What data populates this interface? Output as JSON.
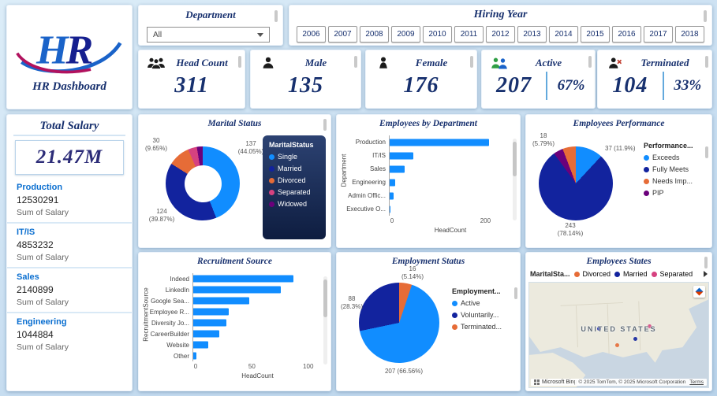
{
  "logo": {
    "text_h": "H",
    "text_r": "R",
    "title": "HR Dashboard"
  },
  "slicers": {
    "department": {
      "title": "Department",
      "value": "All"
    },
    "hiring_year": {
      "title": "Hiring Year",
      "years": [
        "2006",
        "2007",
        "2008",
        "2009",
        "2010",
        "2011",
        "2012",
        "2013",
        "2014",
        "2015",
        "2016",
        "2017",
        "2018"
      ]
    }
  },
  "kpis": [
    {
      "label": "Head Count",
      "value": "311",
      "icon": "people-group-icon"
    },
    {
      "label": "Male",
      "value": "135",
      "icon": "male-person-icon"
    },
    {
      "label": "Female",
      "value": "176",
      "icon": "female-person-icon"
    },
    {
      "label": "Active",
      "value": "207",
      "pct": "67%",
      "icon": "active-people-icon"
    },
    {
      "label": "Terminated",
      "value": "104",
      "pct": "33%",
      "icon": "terminated-person-icon"
    }
  ],
  "total_salary": {
    "title": "Total Salary",
    "value": "21.47M",
    "rows": [
      {
        "dept": "Production",
        "value": "12530291",
        "caption": "Sum of Salary"
      },
      {
        "dept": "IT/IS",
        "value": "4853232",
        "caption": "Sum of Salary"
      },
      {
        "dept": "Sales",
        "value": "2140899",
        "caption": "Sum of Salary"
      },
      {
        "dept": "Engineering",
        "value": "1044884",
        "caption": "Sum of Salary"
      }
    ]
  },
  "chart_data": [
    {
      "id": "marital-status",
      "type": "donut",
      "title": "Marital Status",
      "legend_title": "MaritalStatus",
      "slices": [
        {
          "label": "Single",
          "value": 137,
          "pct": "44.05%",
          "color": "#118DFF"
        },
        {
          "label": "Married",
          "value": 124,
          "pct": "39.87%",
          "color": "#12239E"
        },
        {
          "label": "Divorced",
          "value": 30,
          "pct": "9.65%",
          "color": "#E66C37"
        },
        {
          "label": "Separated",
          "value": 12,
          "pct": "3.86%",
          "color": "#D64280"
        },
        {
          "label": "Widowed",
          "value": 8,
          "pct": "2.57%",
          "color": "#6B007B"
        }
      ],
      "legend": [
        {
          "label": "Single",
          "color": "#118DFF"
        },
        {
          "label": "Married",
          "color": "#12239E"
        },
        {
          "label": "Divorced",
          "color": "#E66C37"
        },
        {
          "label": "Separated",
          "color": "#D64280"
        },
        {
          "label": "Widowed",
          "color": "#6B007B"
        }
      ],
      "callouts": [
        "30\n(9.65%)",
        "137\n(44.05%)",
        "124\n(39.87%)"
      ]
    },
    {
      "id": "employees-by-department",
      "type": "bar",
      "title": "Employees by Department",
      "categories": [
        "Production",
        "IT/IS",
        "Sales",
        "Engineering",
        "Admin Offic...",
        "Executive O..."
      ],
      "values": [
        209,
        50,
        31,
        11,
        9,
        1
      ],
      "bar_color": "#118DFF",
      "xlabel": "HeadCount",
      "ylabel": "Department",
      "xmax": 250,
      "xticks": [
        0,
        200
      ]
    },
    {
      "id": "employees-performance",
      "type": "pie",
      "title": "Employees Performance",
      "legend_title": "Performance...",
      "slices": [
        {
          "label": "Exceeds",
          "value": 37,
          "pct": "11.9%",
          "color": "#118DFF"
        },
        {
          "label": "Fully Meets",
          "value": 243,
          "pct": "78.14%",
          "color": "#12239E"
        },
        {
          "label": "PIP",
          "value": 13,
          "pct": "4.18%",
          "color": "#6B007B"
        },
        {
          "label": "Needs Imp...",
          "value": 18,
          "pct": "5.79%",
          "color": "#E66C37"
        }
      ],
      "legend": [
        {
          "label": "Exceeds",
          "color": "#118DFF"
        },
        {
          "label": "Fully Meets",
          "color": "#12239E"
        },
        {
          "label": "Needs Imp...",
          "color": "#E66C37"
        },
        {
          "label": "PIP",
          "color": "#6B007B"
        }
      ],
      "callouts": [
        "18\n(5.79%)",
        "37 (11.9%)",
        "243\n(78.14%)"
      ]
    },
    {
      "id": "recruitment-source",
      "type": "bar",
      "title": "Recruitment Source",
      "categories": [
        "Indeed",
        "LinkedIn",
        "Google Sea...",
        "Employee R...",
        "Diversity Jo...",
        "CareerBuilder",
        "Website",
        "Other"
      ],
      "values": [
        87,
        76,
        49,
        31,
        29,
        23,
        13,
        3
      ],
      "bar_color": "#118DFF",
      "xlabel": "HeadCount",
      "ylabel": "RecruitmentSource",
      "xmax": 110,
      "xticks": [
        0,
        50,
        100
      ]
    },
    {
      "id": "employment-status",
      "type": "pie",
      "title": "Employment Status",
      "legend_title": "Employment...",
      "slices": [
        {
          "label": "Terminated...",
          "value": 16,
          "pct": "5.14%",
          "color": "#E66C37"
        },
        {
          "label": "Active",
          "value": 207,
          "pct": "66.56%",
          "color": "#118DFF"
        },
        {
          "label": "Voluntarily...",
          "value": 88,
          "pct": "28.3%",
          "color": "#12239E"
        }
      ],
      "legend": [
        {
          "label": "Active",
          "color": "#118DFF"
        },
        {
          "label": "Voluntarily...",
          "color": "#12239E"
        },
        {
          "label": "Terminated...",
          "color": "#E66C37"
        }
      ],
      "callouts": [
        "16\n(5.14%)",
        "88\n(28.3%)",
        "207 (66.56%)"
      ]
    },
    {
      "id": "employees-states",
      "type": "map",
      "title": "Employees States",
      "legend_title": "MaritalSta...",
      "legend": [
        {
          "label": "Divorced",
          "color": "#E66C37"
        },
        {
          "label": "Married",
          "color": "#12239E"
        },
        {
          "label": "Separated",
          "color": "#D64280"
        }
      ],
      "map_label": "UNITED STATES",
      "bing_label": "Microsoft Bing",
      "attribution": "© 2025 TomTom, © 2025 Microsoft Corporation",
      "terms": "Terms"
    }
  ]
}
